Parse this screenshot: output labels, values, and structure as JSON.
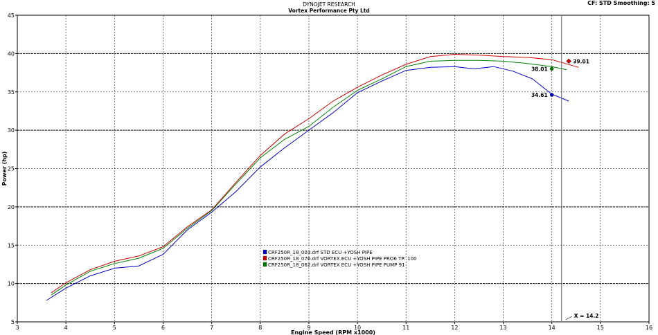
{
  "header": {
    "line1": "DYNOJET RESEARCH",
    "line2": "Vortex Performance Pty Ltd",
    "cf_info": "CF: STD  Smoothing: 5"
  },
  "chart_data": {
    "type": "line",
    "title": "",
    "xlabel": "Engine Speed (RPM x1000)",
    "ylabel": "Power (hp)",
    "xlim": [
      3,
      16
    ],
    "ylim": [
      5,
      45
    ],
    "xticks": [
      3,
      4,
      5,
      6,
      7,
      8,
      9,
      10,
      11,
      12,
      13,
      14,
      15,
      16
    ],
    "yticks": [
      5,
      10,
      15,
      20,
      25,
      30,
      35,
      40,
      45
    ],
    "grid": true,
    "cursor": {
      "x": 14.2,
      "label": "X = 14.2"
    },
    "series": [
      {
        "name": "CRF250R_18_003.drf STD ECU +YOSH PIPE",
        "color": "#0000cc",
        "x": [
          3.6,
          4.0,
          4.5,
          5.0,
          5.5,
          6.0,
          6.5,
          7.0,
          7.5,
          8.0,
          8.5,
          9.0,
          9.5,
          10.0,
          10.5,
          11.0,
          11.5,
          12.0,
          12.4,
          12.8,
          13.2,
          13.6,
          14.0,
          14.35
        ],
        "y": [
          7.8,
          9.4,
          11.0,
          12.0,
          12.3,
          13.8,
          17.0,
          19.3,
          22.0,
          25.2,
          27.7,
          30.0,
          32.3,
          34.9,
          36.4,
          37.8,
          38.2,
          38.3,
          38.0,
          38.3,
          37.7,
          36.7,
          34.7,
          33.8
        ],
        "end_label": "34.61"
      },
      {
        "name": "CRF250R_18_076.drf VORTEX ECU +YOSH PIPE PRO6 TP: 100",
        "color": "#cc0000",
        "x": [
          3.7,
          4.0,
          4.5,
          5.0,
          5.5,
          6.0,
          6.5,
          7.0,
          7.5,
          8.0,
          8.5,
          9.0,
          9.5,
          10.0,
          10.5,
          11.0,
          11.5,
          12.0,
          12.5,
          13.0,
          13.5,
          14.0,
          14.55
        ],
        "y": [
          8.8,
          10.1,
          11.8,
          12.9,
          13.6,
          14.8,
          17.4,
          19.6,
          23.2,
          26.7,
          29.5,
          31.5,
          33.8,
          35.6,
          37.2,
          38.6,
          39.6,
          39.9,
          39.8,
          39.6,
          39.5,
          39.2,
          38.2
        ],
        "end_label": "39.01"
      },
      {
        "name": "CRF250R_18_062.drf VORTEX ECU +YOSH PIPE PUMP 91",
        "color": "#008000",
        "x": [
          3.7,
          4.0,
          4.5,
          5.0,
          5.5,
          6.0,
          6.5,
          7.0,
          7.5,
          8.0,
          8.5,
          9.0,
          9.5,
          10.0,
          10.5,
          11.0,
          11.5,
          12.0,
          12.5,
          13.0,
          13.5,
          14.0,
          14.3
        ],
        "y": [
          8.5,
          9.8,
          11.6,
          12.6,
          13.3,
          14.6,
          17.2,
          19.5,
          23.0,
          26.4,
          28.8,
          30.5,
          33.0,
          35.2,
          36.7,
          38.3,
          39.0,
          39.1,
          39.1,
          39.0,
          38.7,
          38.3,
          37.9
        ],
        "end_label": "38.01"
      }
    ],
    "markers": [
      {
        "series": 0,
        "x": 14.0,
        "y": 34.61,
        "label": "34.61",
        "side": "left",
        "shape": "circle"
      },
      {
        "series": 2,
        "x": 14.0,
        "y": 38.01,
        "label": "38.01",
        "side": "left",
        "shape": "circle"
      },
      {
        "series": 1,
        "x": 14.35,
        "y": 39.01,
        "label": "39.01",
        "side": "right",
        "shape": "diamond"
      }
    ]
  }
}
